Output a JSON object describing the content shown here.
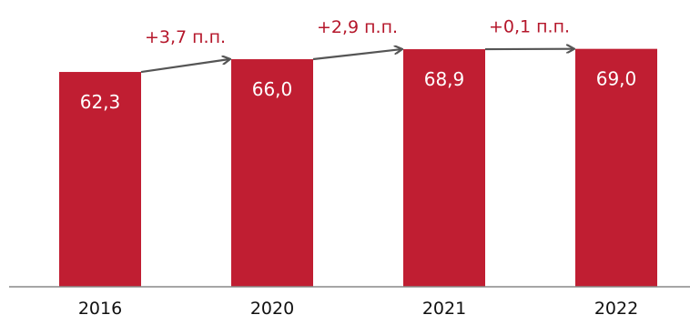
{
  "chart_data": {
    "type": "bar",
    "categories": [
      "2016",
      "2020",
      "2021",
      "2022"
    ],
    "values": [
      62.3,
      66.0,
      68.9,
      69.0
    ],
    "value_labels": [
      "62,3",
      "66,0",
      "68,9",
      "69,0"
    ],
    "changes": [
      {
        "from": "2016",
        "to": "2020",
        "label": "+3,7 п.п."
      },
      {
        "from": "2020",
        "to": "2021",
        "label": "+2,9 п.п."
      },
      {
        "from": "2021",
        "to": "2022",
        "label": "+0,1 п.п."
      }
    ],
    "ylim": [
      0,
      72
    ],
    "grid": false,
    "legend": "none",
    "colors": {
      "bar": "#c01e32",
      "arrow": "#555555",
      "change_text": "#b5172b",
      "axis": "#888888"
    }
  }
}
